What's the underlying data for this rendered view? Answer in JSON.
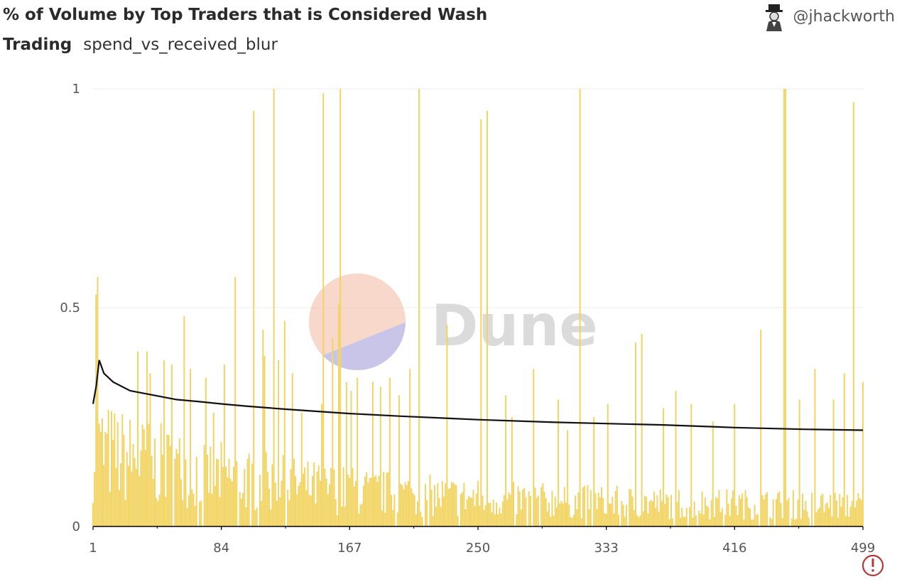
{
  "header": {
    "title_line1": "% of Volume by Top Traders that is Considered Wash",
    "title_line2_bold": "Trading",
    "subtitle": "spend_vs_received_blur",
    "author": "@jhackworth",
    "author_icon": "avatar-icon"
  },
  "watermark": {
    "text": "Dune"
  },
  "colors": {
    "bars": "#f2d463",
    "line": "#000000",
    "grid": "#ececec",
    "warning": "#b23a3a"
  },
  "chart_data": {
    "type": "bar",
    "series": [
      {
        "kind": "bar",
        "description_values": "per-trader wash share, 1..499"
      },
      {
        "kind": "line",
        "description_values": "cumulative wash share"
      }
    ],
    "x_ticks": [
      "1",
      "84",
      "167",
      "250",
      "333",
      "416",
      "499"
    ],
    "y_ticks": [
      "0",
      "0.5",
      "1"
    ],
    "ylim": [
      0,
      1
    ],
    "xlim": [
      1,
      499
    ],
    "grid": true,
    "spikes": [
      {
        "x": 3,
        "y": 0.53
      },
      {
        "x": 4,
        "y": 0.57
      },
      {
        "x": 30,
        "y": 0.4
      },
      {
        "x": 36,
        "y": 0.4
      },
      {
        "x": 38,
        "y": 0.35
      },
      {
        "x": 47,
        "y": 0.38
      },
      {
        "x": 52,
        "y": 0.37
      },
      {
        "x": 60,
        "y": 0.48
      },
      {
        "x": 64,
        "y": 0.36
      },
      {
        "x": 74,
        "y": 0.34
      },
      {
        "x": 79,
        "y": 0.26
      },
      {
        "x": 86,
        "y": 0.37
      },
      {
        "x": 93,
        "y": 0.57
      },
      {
        "x": 105,
        "y": 0.95
      },
      {
        "x": 111,
        "y": 0.45
      },
      {
        "x": 112,
        "y": 0.39
      },
      {
        "x": 118,
        "y": 1.0
      },
      {
        "x": 121,
        "y": 0.38
      },
      {
        "x": 125,
        "y": 0.47
      },
      {
        "x": 130,
        "y": 0.35
      },
      {
        "x": 136,
        "y": 0.26
      },
      {
        "x": 149,
        "y": 0.28
      },
      {
        "x": 150,
        "y": 0.99
      },
      {
        "x": 156,
        "y": 0.43
      },
      {
        "x": 160,
        "y": 0.51
      },
      {
        "x": 161,
        "y": 1.0
      },
      {
        "x": 165,
        "y": 0.33
      },
      {
        "x": 168,
        "y": 0.31
      },
      {
        "x": 172,
        "y": 0.34
      },
      {
        "x": 182,
        "y": 0.33
      },
      {
        "x": 187,
        "y": 0.32
      },
      {
        "x": 193,
        "y": 0.34
      },
      {
        "x": 199,
        "y": 0.3
      },
      {
        "x": 206,
        "y": 0.36
      },
      {
        "x": 212,
        "y": 1.0
      },
      {
        "x": 230,
        "y": 0.46
      },
      {
        "x": 252,
        "y": 0.93
      },
      {
        "x": 256,
        "y": 0.95
      },
      {
        "x": 268,
        "y": 0.3
      },
      {
        "x": 272,
        "y": 0.25
      },
      {
        "x": 286,
        "y": 0.36
      },
      {
        "x": 302,
        "y": 0.29
      },
      {
        "x": 308,
        "y": 0.22
      },
      {
        "x": 316,
        "y": 1.0
      },
      {
        "x": 325,
        "y": 0.25
      },
      {
        "x": 334,
        "y": 0.28
      },
      {
        "x": 352,
        "y": 0.42
      },
      {
        "x": 356,
        "y": 0.44
      },
      {
        "x": 370,
        "y": 0.27
      },
      {
        "x": 378,
        "y": 0.31
      },
      {
        "x": 388,
        "y": 0.28
      },
      {
        "x": 402,
        "y": 0.24
      },
      {
        "x": 416,
        "y": 0.28
      },
      {
        "x": 433,
        "y": 0.45
      },
      {
        "x": 448,
        "y": 1.0
      },
      {
        "x": 449,
        "y": 1.0
      },
      {
        "x": 458,
        "y": 0.29
      },
      {
        "x": 468,
        "y": 0.36
      },
      {
        "x": 480,
        "y": 0.29
      },
      {
        "x": 487,
        "y": 0.35
      },
      {
        "x": 493,
        "y": 0.97
      },
      {
        "x": 499,
        "y": 0.33
      }
    ],
    "cumulative_line": [
      {
        "x": 1,
        "y": 0.28
      },
      {
        "x": 3,
        "y": 0.32
      },
      {
        "x": 5,
        "y": 0.38
      },
      {
        "x": 8,
        "y": 0.35
      },
      {
        "x": 14,
        "y": 0.33
      },
      {
        "x": 25,
        "y": 0.31
      },
      {
        "x": 40,
        "y": 0.3
      },
      {
        "x": 55,
        "y": 0.29
      },
      {
        "x": 70,
        "y": 0.285
      },
      {
        "x": 84,
        "y": 0.28
      },
      {
        "x": 100,
        "y": 0.275
      },
      {
        "x": 125,
        "y": 0.268
      },
      {
        "x": 150,
        "y": 0.262
      },
      {
        "x": 167,
        "y": 0.258
      },
      {
        "x": 200,
        "y": 0.252
      },
      {
        "x": 250,
        "y": 0.244
      },
      {
        "x": 300,
        "y": 0.238
      },
      {
        "x": 333,
        "y": 0.235
      },
      {
        "x": 370,
        "y": 0.232
      },
      {
        "x": 416,
        "y": 0.226
      },
      {
        "x": 460,
        "y": 0.222
      },
      {
        "x": 499,
        "y": 0.22
      }
    ]
  }
}
